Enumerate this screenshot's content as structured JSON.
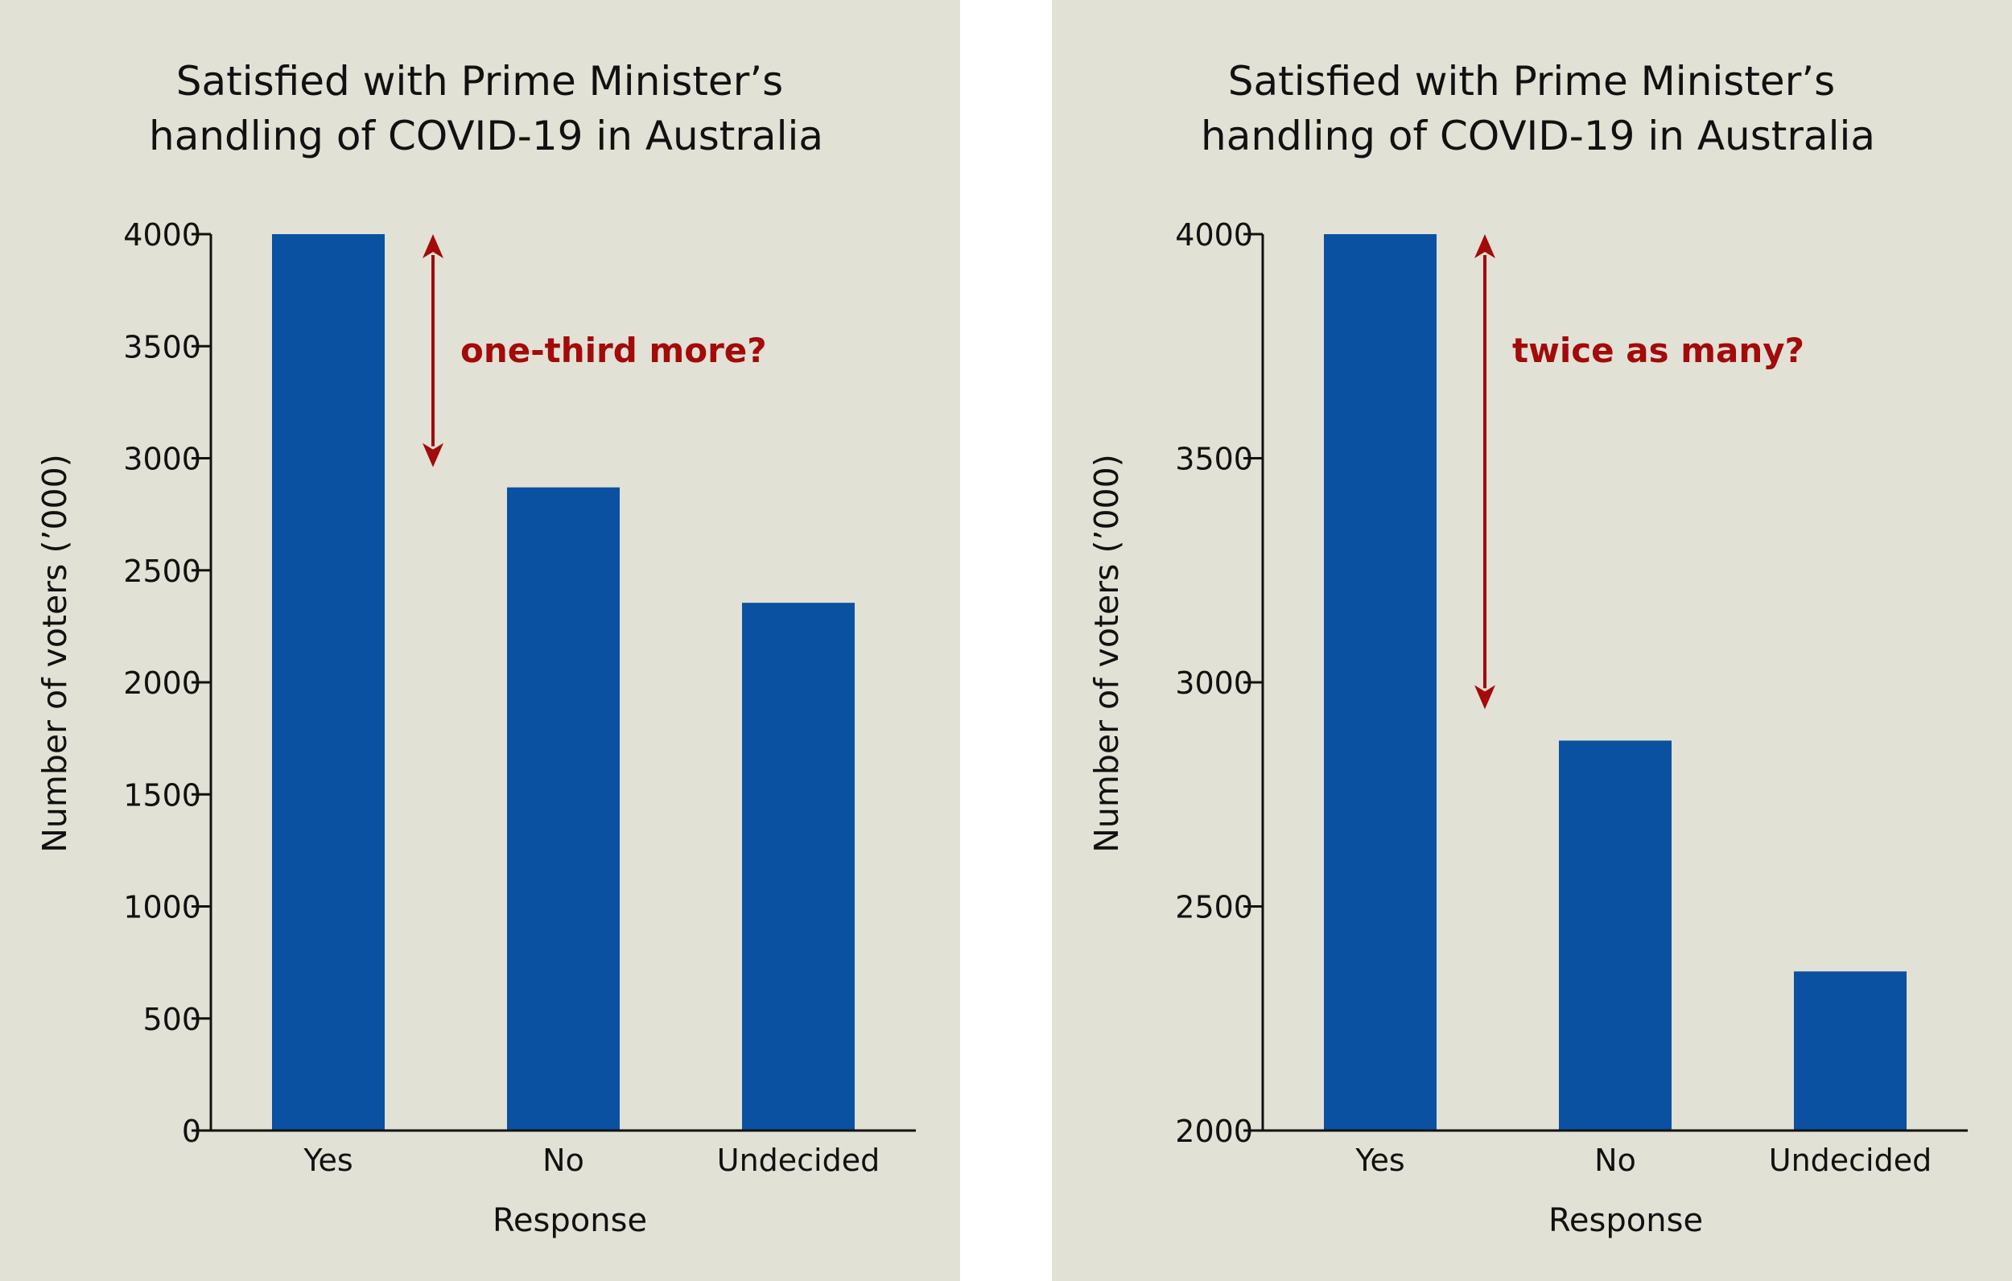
{
  "colors": {
    "panel_background": "#e2e1d5",
    "bar": "#0a51a2",
    "annotation": "#a30a0a",
    "axis": "#111111",
    "text": "#111111"
  },
  "chart_data": [
    {
      "type": "bar",
      "title_lines": [
        "Satisfied with Prime Minister’s",
        "handling of COVID-19 in Australia"
      ],
      "xlabel": "Response",
      "ylabel": "Number of voters (’000)",
      "categories": [
        "Yes",
        "No",
        "Undecided"
      ],
      "values": [
        4000,
        2870,
        2355
      ],
      "ylim": [
        0,
        4000
      ],
      "yticks": [
        0,
        500,
        1000,
        1500,
        2000,
        2500,
        3000,
        3500,
        4000
      ],
      "grid": false,
      "legend": "none",
      "annotation": {
        "text": "one-third more?",
        "arrow_from": 4000,
        "arrow_to": 2960
      }
    },
    {
      "type": "bar",
      "title_lines": [
        "Satisfied with Prime Minister’s",
        "handling of COVID-19 in Australia"
      ],
      "xlabel": "Response",
      "ylabel": "Number of voters (’000)",
      "categories": [
        "Yes",
        "No",
        "Undecided"
      ],
      "values": [
        4000,
        2870,
        2355
      ],
      "ylim": [
        2000,
        4000
      ],
      "yticks": [
        2000,
        2500,
        3000,
        3500,
        4000
      ],
      "grid": false,
      "legend": "none",
      "annotation": {
        "text": "twice as many?",
        "arrow_from": 4000,
        "arrow_to": 2940
      }
    }
  ]
}
